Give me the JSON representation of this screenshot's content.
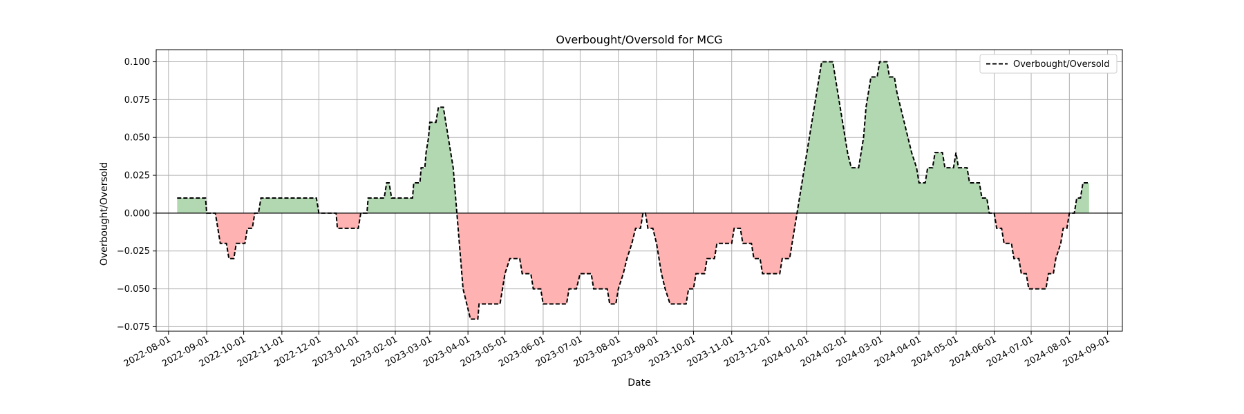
{
  "chart_data": {
    "type": "line",
    "title": "Overbought/Oversold for MCG",
    "xlabel": "Date",
    "ylabel": "Overbought/Oversold",
    "ylim": [
      -0.078,
      0.108
    ],
    "xlim": [
      "2022-07-22",
      "2024-09-13"
    ],
    "grid": true,
    "legend": {
      "placement": "top-right",
      "entries": [
        "Overbought/Oversold"
      ]
    },
    "x_ticks": [
      "2022-08-01",
      "2022-09-01",
      "2022-10-01",
      "2022-11-01",
      "2022-12-01",
      "2023-01-01",
      "2023-02-01",
      "2023-03-01",
      "2023-04-01",
      "2023-05-01",
      "2023-06-01",
      "2023-07-01",
      "2023-08-01",
      "2023-09-01",
      "2023-10-01",
      "2023-11-01",
      "2023-12-01",
      "2024-01-01",
      "2024-02-01",
      "2024-03-01",
      "2024-04-01",
      "2024-05-01",
      "2024-06-01",
      "2024-07-01",
      "2024-08-01",
      "2024-09-01"
    ],
    "y_ticks": [
      "0.100",
      "0.075",
      "0.050",
      "0.025",
      "0.000",
      "−0.025",
      "−0.050",
      "−0.075"
    ],
    "y_tick_values": [
      0.1,
      0.075,
      0.05,
      0.025,
      0,
      -0.025,
      -0.05,
      -0.075
    ],
    "colors": {
      "positive_fill": "#b2d8b2",
      "negative_fill": "#ffb2b2",
      "line": "#000000",
      "zero_line": "#000000",
      "grid": "#b0b0b0"
    },
    "series": [
      {
        "name": "Overbought/Oversold",
        "style": "dashed",
        "points": [
          [
            "2022-08-08",
            0.01
          ],
          [
            "2022-08-31",
            0.01
          ],
          [
            "2022-09-01",
            0.0
          ],
          [
            "2022-09-08",
            0.0
          ],
          [
            "2022-09-10",
            -0.01
          ],
          [
            "2022-09-12",
            -0.02
          ],
          [
            "2022-09-17",
            -0.02
          ],
          [
            "2022-09-19",
            -0.03
          ],
          [
            "2022-09-23",
            -0.03
          ],
          [
            "2022-09-25",
            -0.02
          ],
          [
            "2022-10-02",
            -0.02
          ],
          [
            "2022-10-04",
            -0.01
          ],
          [
            "2022-10-08",
            -0.01
          ],
          [
            "2022-10-10",
            0.0
          ],
          [
            "2022-10-13",
            0.0
          ],
          [
            "2022-10-15",
            0.01
          ],
          [
            "2022-11-29",
            0.01
          ],
          [
            "2022-12-01",
            0.0
          ],
          [
            "2022-12-15",
            0.0
          ],
          [
            "2022-12-16",
            -0.01
          ],
          [
            "2023-01-02",
            -0.01
          ],
          [
            "2023-01-04",
            0.0
          ],
          [
            "2023-01-09",
            0.0
          ],
          [
            "2023-01-10",
            0.01
          ],
          [
            "2023-01-23",
            0.01
          ],
          [
            "2023-01-25",
            0.02
          ],
          [
            "2023-01-27",
            0.02
          ],
          [
            "2023-01-29",
            0.01
          ],
          [
            "2023-02-15",
            0.01
          ],
          [
            "2023-02-16",
            0.02
          ],
          [
            "2023-02-21",
            0.02
          ],
          [
            "2023-02-22",
            0.03
          ],
          [
            "2023-02-25",
            0.03
          ],
          [
            "2023-02-26",
            0.04
          ],
          [
            "2023-02-28",
            0.05
          ],
          [
            "2023-03-01",
            0.06
          ],
          [
            "2023-03-06",
            0.06
          ],
          [
            "2023-03-08",
            0.07
          ],
          [
            "2023-03-12",
            0.07
          ],
          [
            "2023-03-14",
            0.06
          ],
          [
            "2023-03-16",
            0.05
          ],
          [
            "2023-03-18",
            0.04
          ],
          [
            "2023-03-20",
            0.03
          ],
          [
            "2023-03-22",
            0.01
          ],
          [
            "2023-03-24",
            -0.01
          ],
          [
            "2023-03-26",
            -0.03
          ],
          [
            "2023-03-28",
            -0.05
          ],
          [
            "2023-04-03",
            -0.07
          ],
          [
            "2023-04-09",
            -0.07
          ],
          [
            "2023-04-10",
            -0.06
          ],
          [
            "2023-04-27",
            -0.06
          ],
          [
            "2023-04-29",
            -0.05
          ],
          [
            "2023-05-01",
            -0.04
          ],
          [
            "2023-05-05",
            -0.03
          ],
          [
            "2023-05-13",
            -0.03
          ],
          [
            "2023-05-15",
            -0.04
          ],
          [
            "2023-05-22",
            -0.04
          ],
          [
            "2023-05-24",
            -0.05
          ],
          [
            "2023-05-30",
            -0.05
          ],
          [
            "2023-06-01",
            -0.06
          ],
          [
            "2023-06-20",
            -0.06
          ],
          [
            "2023-06-22",
            -0.05
          ],
          [
            "2023-06-28",
            -0.05
          ],
          [
            "2023-07-01",
            -0.04
          ],
          [
            "2023-07-10",
            -0.04
          ],
          [
            "2023-07-12",
            -0.05
          ],
          [
            "2023-07-23",
            -0.05
          ],
          [
            "2023-07-25",
            -0.06
          ],
          [
            "2023-07-30",
            -0.06
          ],
          [
            "2023-08-01",
            -0.05
          ],
          [
            "2023-08-05",
            -0.04
          ],
          [
            "2023-08-08",
            -0.03
          ],
          [
            "2023-08-12",
            -0.02
          ],
          [
            "2023-08-15",
            -0.01
          ],
          [
            "2023-08-19",
            -0.01
          ],
          [
            "2023-08-21",
            0.0
          ],
          [
            "2023-08-23",
            0.0
          ],
          [
            "2023-08-25",
            -0.01
          ],
          [
            "2023-08-29",
            -0.01
          ],
          [
            "2023-09-01",
            -0.02
          ],
          [
            "2023-09-03",
            -0.03
          ],
          [
            "2023-09-05",
            -0.04
          ],
          [
            "2023-09-08",
            -0.05
          ],
          [
            "2023-09-12",
            -0.06
          ],
          [
            "2023-09-25",
            -0.06
          ],
          [
            "2023-09-27",
            -0.05
          ],
          [
            "2023-10-01",
            -0.05
          ],
          [
            "2023-10-03",
            -0.04
          ],
          [
            "2023-10-10",
            -0.04
          ],
          [
            "2023-10-12",
            -0.03
          ],
          [
            "2023-10-18",
            -0.03
          ],
          [
            "2023-10-20",
            -0.02
          ],
          [
            "2023-11-01",
            -0.02
          ],
          [
            "2023-11-03",
            -0.01
          ],
          [
            "2023-11-08",
            -0.01
          ],
          [
            "2023-11-10",
            -0.02
          ],
          [
            "2023-11-17",
            -0.02
          ],
          [
            "2023-11-19",
            -0.03
          ],
          [
            "2023-11-24",
            -0.03
          ],
          [
            "2023-11-26",
            -0.04
          ],
          [
            "2023-12-10",
            -0.04
          ],
          [
            "2023-12-12",
            -0.03
          ],
          [
            "2023-12-18",
            -0.03
          ],
          [
            "2023-12-20",
            -0.02
          ],
          [
            "2023-12-22",
            -0.01
          ],
          [
            "2023-12-24",
            0.0
          ],
          [
            "2023-12-26",
            0.01
          ],
          [
            "2023-12-28",
            0.02
          ],
          [
            "2023-12-30",
            0.03
          ],
          [
            "2024-01-01",
            0.04
          ],
          [
            "2024-01-03",
            0.05
          ],
          [
            "2024-01-05",
            0.06
          ],
          [
            "2024-01-07",
            0.07
          ],
          [
            "2024-01-09",
            0.08
          ],
          [
            "2024-01-11",
            0.09
          ],
          [
            "2024-01-13",
            0.1
          ],
          [
            "2024-01-22",
            0.1
          ],
          [
            "2024-01-24",
            0.09
          ],
          [
            "2024-01-26",
            0.08
          ],
          [
            "2024-01-28",
            0.07
          ],
          [
            "2024-01-30",
            0.06
          ],
          [
            "2024-02-01",
            0.05
          ],
          [
            "2024-02-03",
            0.04
          ],
          [
            "2024-02-06",
            0.03
          ],
          [
            "2024-02-12",
            0.03
          ],
          [
            "2024-02-14",
            0.04
          ],
          [
            "2024-02-16",
            0.05
          ],
          [
            "2024-02-18",
            0.07
          ],
          [
            "2024-02-20",
            0.08
          ],
          [
            "2024-02-22",
            0.09
          ],
          [
            "2024-02-27",
            0.09
          ],
          [
            "2024-02-29",
            0.1
          ],
          [
            "2024-03-06",
            0.1
          ],
          [
            "2024-03-08",
            0.09
          ],
          [
            "2024-03-12",
            0.09
          ],
          [
            "2024-03-14",
            0.08
          ],
          [
            "2024-03-17",
            0.07
          ],
          [
            "2024-03-20",
            0.06
          ],
          [
            "2024-03-23",
            0.05
          ],
          [
            "2024-03-26",
            0.04
          ],
          [
            "2024-03-30",
            0.03
          ],
          [
            "2024-04-01",
            0.02
          ],
          [
            "2024-04-06",
            0.02
          ],
          [
            "2024-04-08",
            0.03
          ],
          [
            "2024-04-12",
            0.03
          ],
          [
            "2024-04-14",
            0.04
          ],
          [
            "2024-04-20",
            0.04
          ],
          [
            "2024-04-22",
            0.03
          ],
          [
            "2024-04-29",
            0.03
          ],
          [
            "2024-05-01",
            0.04
          ],
          [
            "2024-05-03",
            0.03
          ],
          [
            "2024-05-10",
            0.03
          ],
          [
            "2024-05-12",
            0.02
          ],
          [
            "2024-05-20",
            0.02
          ],
          [
            "2024-05-22",
            0.01
          ],
          [
            "2024-05-26",
            0.01
          ],
          [
            "2024-05-28",
            0.0
          ],
          [
            "2024-06-01",
            0.0
          ],
          [
            "2024-06-03",
            -0.01
          ],
          [
            "2024-06-07",
            -0.01
          ],
          [
            "2024-06-09",
            -0.02
          ],
          [
            "2024-06-15",
            -0.02
          ],
          [
            "2024-06-17",
            -0.03
          ],
          [
            "2024-06-21",
            -0.03
          ],
          [
            "2024-06-23",
            -0.04
          ],
          [
            "2024-06-27",
            -0.04
          ],
          [
            "2024-06-29",
            -0.05
          ],
          [
            "2024-07-13",
            -0.05
          ],
          [
            "2024-07-15",
            -0.04
          ],
          [
            "2024-07-19",
            -0.04
          ],
          [
            "2024-07-21",
            -0.03
          ],
          [
            "2024-07-25",
            -0.02
          ],
          [
            "2024-07-27",
            -0.01
          ],
          [
            "2024-07-30",
            -0.01
          ],
          [
            "2024-08-01",
            0.0
          ],
          [
            "2024-08-05",
            0.0
          ],
          [
            "2024-08-07",
            0.01
          ],
          [
            "2024-08-10",
            0.01
          ],
          [
            "2024-08-12",
            0.02
          ],
          [
            "2024-08-17",
            0.02
          ]
        ]
      }
    ]
  }
}
